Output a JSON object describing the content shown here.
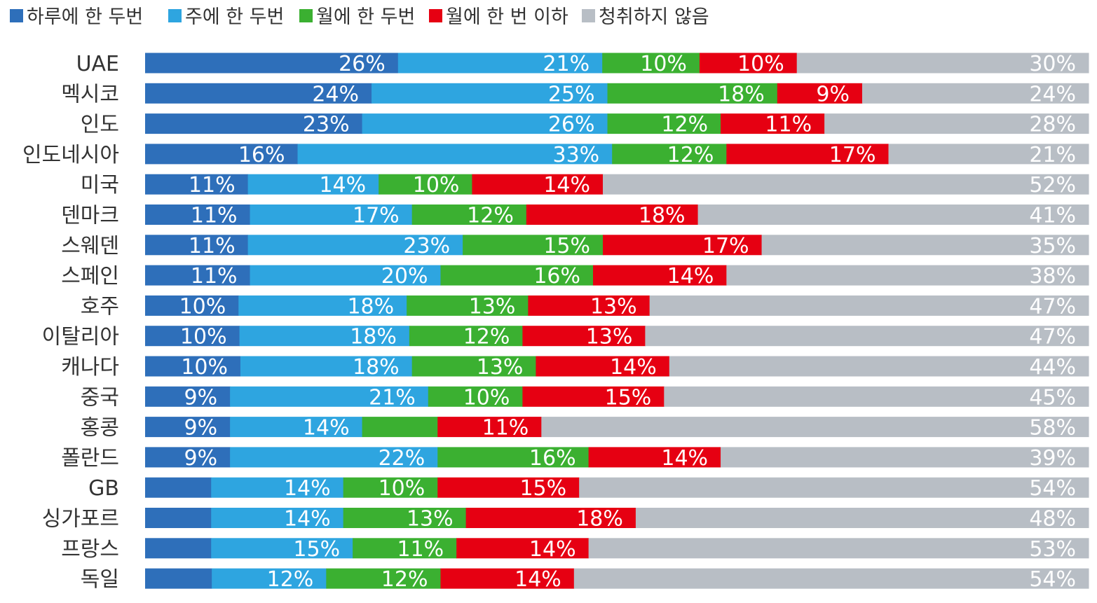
{
  "chart_data": {
    "type": "bar",
    "orientation": "horizontal",
    "stacked": true,
    "percent_stacked": true,
    "legend_position": "top-left",
    "grid": false,
    "title": "",
    "xlabel": "",
    "ylabel": "",
    "categories": [
      "UAE",
      "멕시코",
      "인도",
      "인도네시아",
      "미국",
      "덴마크",
      "스웨덴",
      "스페인",
      "호주",
      "이탈리아",
      "캐나다",
      "중국",
      "홍콩",
      "폴란드",
      "GB",
      "싱가포르",
      "프랑스",
      "독일"
    ],
    "series": [
      {
        "name": "하루에 한 두번",
        "color": "#2e6fba",
        "values": [
          26,
          24,
          23,
          16,
          11,
          11,
          11,
          11,
          10,
          10,
          10,
          9,
          9,
          9,
          7,
          7,
          7,
          7
        ],
        "labels": [
          "26%",
          "24%",
          "23%",
          "16%",
          "11%",
          "11%",
          "11%",
          "11%",
          "10%",
          "10%",
          "10%",
          "9%",
          "9%",
          "9%",
          "",
          "",
          "",
          ""
        ]
      },
      {
        "name": "주에 한 두번",
        "color": "#2ea5e0",
        "values": [
          21,
          25,
          26,
          33,
          14,
          17,
          23,
          20,
          18,
          18,
          18,
          21,
          14,
          22,
          14,
          14,
          15,
          12
        ],
        "labels": [
          "21%",
          "25%",
          "26%",
          "33%",
          "14%",
          "17%",
          "23%",
          "20%",
          "18%",
          "18%",
          "18%",
          "21%",
          "14%",
          "22%",
          "14%",
          "14%",
          "15%",
          "12%"
        ]
      },
      {
        "name": "월에 한 두번",
        "color": "#3bb031",
        "values": [
          10,
          18,
          12,
          12,
          10,
          12,
          15,
          16,
          13,
          12,
          13,
          10,
          8,
          16,
          10,
          13,
          11,
          12
        ],
        "labels": [
          "10%",
          "18%",
          "12%",
          "12%",
          "10%",
          "12%",
          "15%",
          "16%",
          "13%",
          "12%",
          "13%",
          "10%",
          "",
          "16%",
          "10%",
          "13%",
          "11%",
          "12%"
        ]
      },
      {
        "name": "월에 한 번 이하",
        "color": "#e60012",
        "values": [
          10,
          9,
          11,
          17,
          14,
          18,
          17,
          14,
          13,
          13,
          14,
          15,
          11,
          14,
          15,
          18,
          14,
          14
        ],
        "labels": [
          "10%",
          "9%",
          "11%",
          "17%",
          "14%",
          "18%",
          "17%",
          "14%",
          "13%",
          "13%",
          "14%",
          "15%",
          "11%",
          "14%",
          "15%",
          "18%",
          "14%",
          "14%"
        ]
      },
      {
        "name": "청취하지 않음",
        "color": "#b8bec5",
        "values": [
          30,
          24,
          28,
          21,
          52,
          41,
          35,
          38,
          47,
          47,
          44,
          45,
          58,
          39,
          54,
          48,
          53,
          54
        ],
        "labels": [
          "30%",
          "24%",
          "28%",
          "21%",
          "52%",
          "41%",
          "35%",
          "38%",
          "47%",
          "47%",
          "44%",
          "45%",
          "58%",
          "39%",
          "54%",
          "48%",
          "53%",
          "54%"
        ]
      }
    ]
  }
}
